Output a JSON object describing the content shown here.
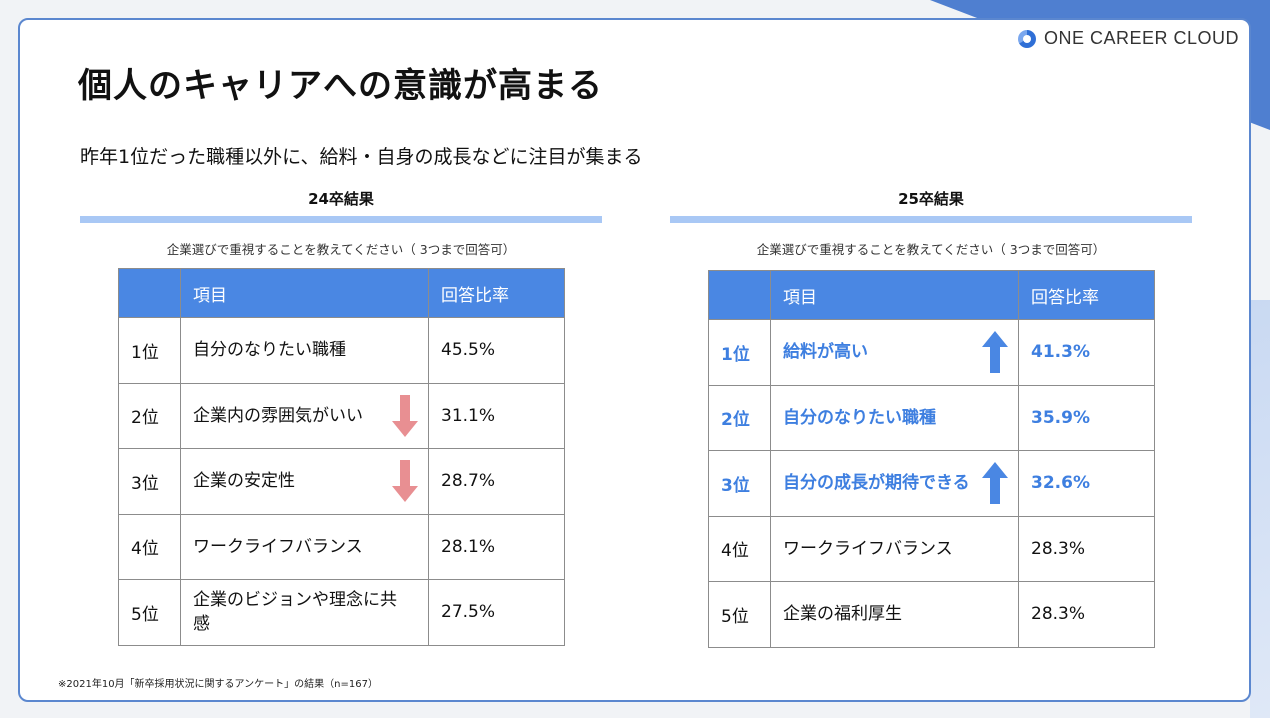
{
  "brand": "ONE CAREER CLOUD",
  "title": "個人のキャリアへの意識が高まる",
  "subtitle": "昨年1位だった職種以外に、給料・自身の成長などに注目が集まる",
  "left": {
    "heading": "24卒結果",
    "question": "企業選びで重視することを教えてください（ 3つまで回答可）",
    "columns": [
      "",
      "項目",
      "回答比率"
    ],
    "rows": [
      {
        "rank": "1位",
        "item": "自分のなりたい職種",
        "rate": "45.5%",
        "trend": "none"
      },
      {
        "rank": "2位",
        "item": "企業内の雰囲気がいい",
        "rate": "31.1%",
        "trend": "down"
      },
      {
        "rank": "3位",
        "item": "企業の安定性",
        "rate": "28.7%",
        "trend": "down"
      },
      {
        "rank": "4位",
        "item": "ワークライフバランス",
        "rate": "28.1%",
        "trend": "none"
      },
      {
        "rank": "5位",
        "item": "企業のビジョンや理念に共感",
        "rate": "27.5%",
        "trend": "none"
      }
    ]
  },
  "right": {
    "heading": "25卒結果",
    "question": "企業選びで重視することを教えてください（ 3つまで回答可）",
    "columns": [
      "",
      "項目",
      "回答比率"
    ],
    "rows": [
      {
        "rank": "1位",
        "item": "給料が高い",
        "rate": "41.3%",
        "trend": "up"
      },
      {
        "rank": "2位",
        "item": "自分のなりたい職種",
        "rate": "35.9%",
        "trend": "none"
      },
      {
        "rank": "3位",
        "item": "自分の成長が期待できる",
        "rate": "32.6%",
        "trend": "up"
      },
      {
        "rank": "4位",
        "item": "ワークライフバランス",
        "rate": "28.3%",
        "trend": "none"
      },
      {
        "rank": "5位",
        "item": "企業の福利厚生",
        "rate": "28.3%",
        "trend": "none"
      }
    ]
  },
  "footnote": "※2021年10月「新卒採用状況に関するアンケート」の結果（n=167）",
  "colors": {
    "header_fill": "#4a87e3",
    "highlight_text": "#3e7fe0",
    "up_arrow": "#4a87e3",
    "down_arrow": "#e88f92",
    "accent": "#4f7fd0"
  }
}
